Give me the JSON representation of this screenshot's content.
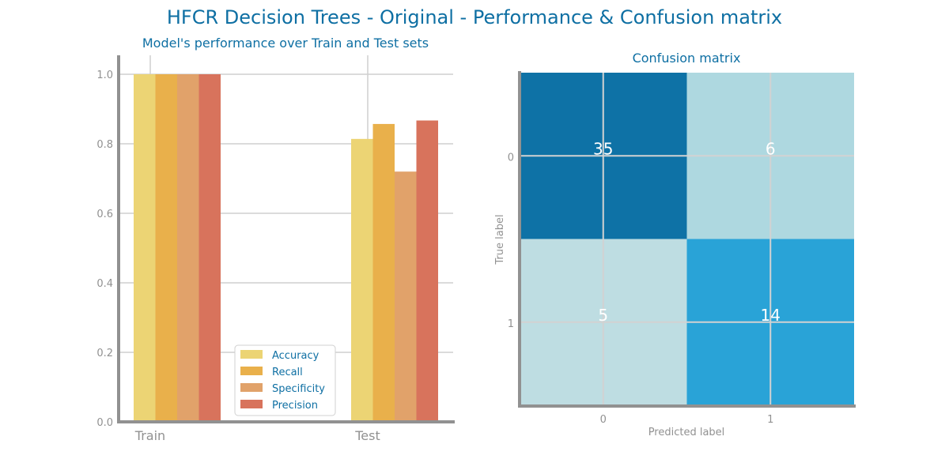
{
  "figure": {
    "title": "HFCR Decision Trees - Original - Performance & Confusion matrix"
  },
  "chart_data": [
    {
      "type": "bar",
      "title": "Model's performance over Train and Test sets",
      "categories": [
        "Train",
        "Test"
      ],
      "series": [
        {
          "name": "Accuracy",
          "color": "#ecd474",
          "values": [
            1.0,
            0.814
          ]
        },
        {
          "name": "Recall",
          "color": "#e9b04b",
          "values": [
            1.0,
            0.857
          ]
        },
        {
          "name": "Specificity",
          "color": "#e1a26a",
          "values": [
            1.0,
            0.72
          ]
        },
        {
          "name": "Precision",
          "color": "#d8735c",
          "values": [
            1.0,
            0.867
          ]
        }
      ],
      "ylim": [
        0,
        1.05
      ],
      "yticks": [
        "0.0",
        "0.2",
        "0.4",
        "0.6",
        "0.8",
        "1.0"
      ],
      "grid": true,
      "legend": "lower-center"
    },
    {
      "type": "heatmap",
      "title": "Confusion matrix",
      "xlabel": "Predicted label",
      "ylabel": "True label",
      "x_categories": [
        "0",
        "1"
      ],
      "y_categories": [
        "0",
        "1"
      ],
      "values": [
        [
          35,
          6
        ],
        [
          5,
          14
        ]
      ],
      "cell_colors": [
        [
          "#0e72a6",
          "#aed8e0"
        ],
        [
          "#bedde2",
          "#29a3d7"
        ]
      ],
      "text_color": "#ffffff"
    }
  ]
}
